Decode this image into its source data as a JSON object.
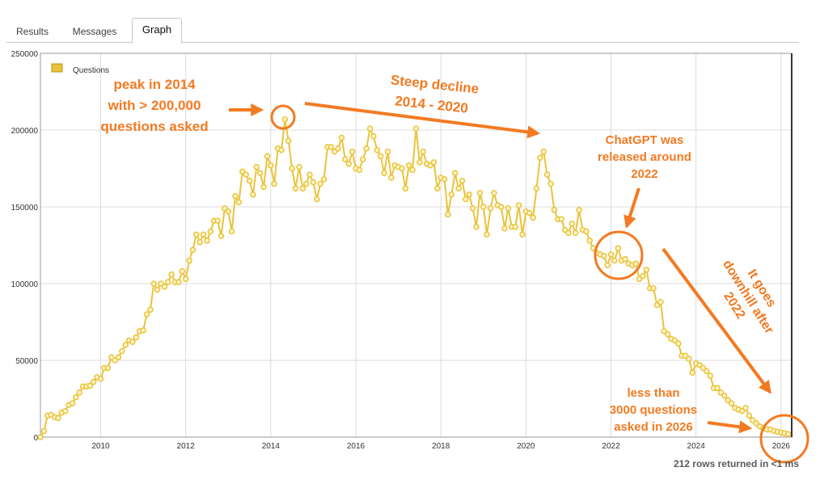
{
  "tabs": [
    {
      "label": "Results",
      "active": false
    },
    {
      "label": "Messages",
      "active": false
    },
    {
      "label": "Graph",
      "active": true
    }
  ],
  "footer": {
    "rows_text": "212 rows returned in <1 ms"
  },
  "colors": {
    "series": "#e9c33b",
    "annotation": "#f37a22",
    "grid": "#dcdcdc"
  },
  "annotations": {
    "peak": [
      "peak in 2014",
      "with > 200,000",
      "questions asked"
    ],
    "decline": [
      "Steep decline",
      "2014 - 2020"
    ],
    "chatgpt": [
      "ChatGPT was",
      "released around",
      "2022"
    ],
    "downhill": [
      "It goes",
      "downhill after",
      "2022"
    ],
    "less": [
      "less than",
      "3000 questions",
      "asked in 2026"
    ]
  },
  "chart_data": {
    "type": "line",
    "title": "",
    "xlabel": "",
    "ylabel": "",
    "legend": {
      "entries": [
        "Questions"
      ],
      "position": "top-left"
    },
    "grid": true,
    "xlim": [
      2008.583,
      2026.25
    ],
    "ylim": [
      0,
      250000
    ],
    "x_ticks": [
      "2010",
      "2012",
      "2014",
      "2016",
      "2018",
      "2020",
      "2022",
      "2024",
      "2026"
    ],
    "y_ticks": [
      "0",
      "50000",
      "100000",
      "150000",
      "200000",
      "250000"
    ],
    "series": [
      {
        "name": "Questions",
        "start": "2008-08",
        "interval": "month",
        "values": [
          0,
          4000,
          14000,
          14500,
          13000,
          12500,
          16000,
          17000,
          21000,
          22000,
          26000,
          29000,
          33000,
          33000,
          33500,
          36000,
          39000,
          38000,
          45000,
          45000,
          52000,
          50000,
          52000,
          56000,
          60000,
          63000,
          62000,
          65000,
          69000,
          69500,
          80000,
          83000,
          100000,
          96000,
          100000,
          98000,
          101000,
          106000,
          101000,
          101000,
          108000,
          103000,
          115000,
          122000,
          132000,
          127000,
          132000,
          128000,
          134000,
          141000,
          141000,
          131000,
          149000,
          147000,
          134000,
          157000,
          153000,
          173000,
          171000,
          167000,
          158000,
          176000,
          172000,
          163000,
          183000,
          177000,
          165000,
          188000,
          187000,
          207000,
          193000,
          175000,
          162000,
          176000,
          162000,
          165000,
          171000,
          166000,
          155000,
          165000,
          168000,
          189000,
          189000,
          186000,
          188000,
          195000,
          181000,
          178000,
          186000,
          175000,
          174000,
          181000,
          188000,
          201000,
          196000,
          187000,
          183000,
          172000,
          186000,
          169000,
          177000,
          176000,
          175000,
          162000,
          177000,
          174000,
          201000,
          179000,
          186000,
          178000,
          177000,
          179000,
          162000,
          169000,
          168000,
          145000,
          158000,
          172000,
          162000,
          167000,
          155000,
          158000,
          149000,
          137000,
          159000,
          150000,
          132000,
          149000,
          159000,
          151000,
          150000,
          136000,
          149000,
          137000,
          137000,
          151000,
          132000,
          147000,
          146000,
          143000,
          162000,
          182000,
          186000,
          171000,
          165000,
          148000,
          142000,
          142000,
          135000,
          133000,
          139000,
          133000,
          148000,
          135000,
          134000,
          128000,
          123000,
          120000,
          119000,
          118000,
          112000,
          119000,
          115000,
          123000,
          115000,
          116000,
          113000,
          112000,
          113000,
          103000,
          105000,
          109000,
          97000,
          97000,
          86000,
          88000,
          69000,
          67000,
          64000,
          63000,
          61000,
          53000,
          53000,
          51000,
          42000,
          48000,
          47000,
          45000,
          43000,
          40000,
          32000,
          32000,
          29000,
          27000,
          24000,
          22000,
          19000,
          18000,
          17000,
          19000,
          14000,
          11000,
          9000,
          7000,
          6000,
          5000,
          5000,
          4000,
          3500,
          3000,
          2500,
          2000
        ]
      }
    ]
  }
}
